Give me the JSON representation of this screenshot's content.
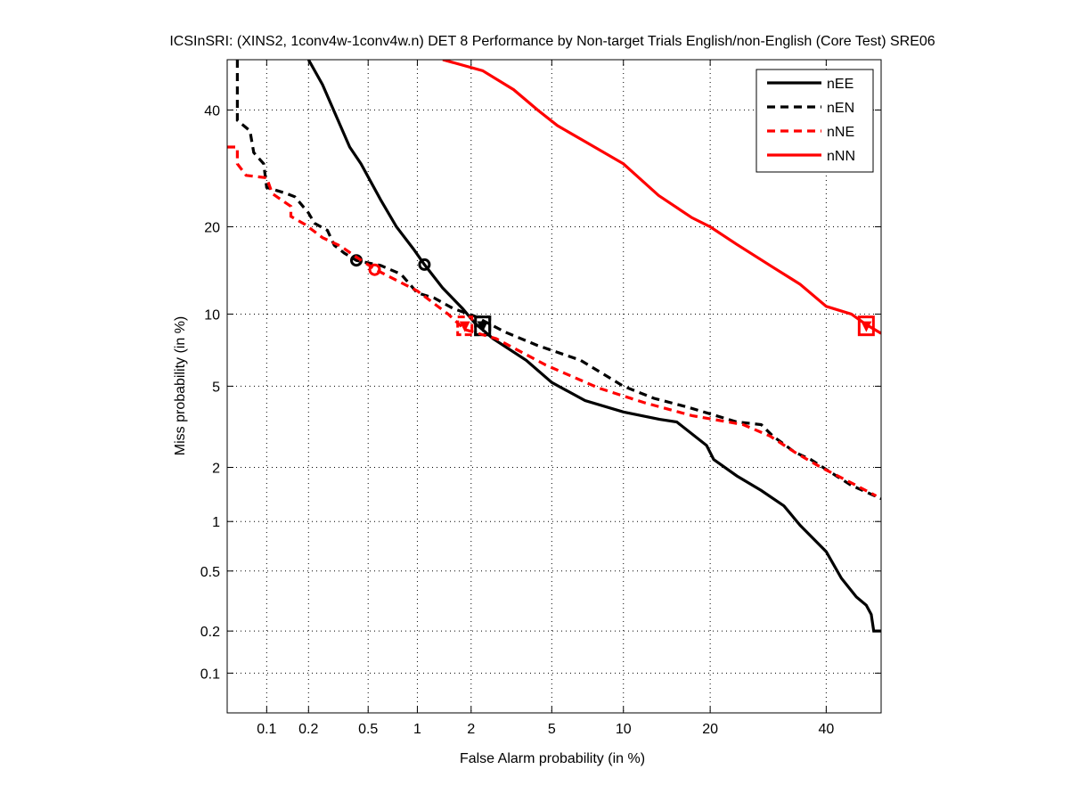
{
  "chart_data": {
    "type": "line",
    "title": "ICSInSRI: (XINS2, 1conv4w-1conv4w.n) DET 8 Performance by Non-target Trials English/non-English (Core Test) SRE06",
    "xlabel": "False Alarm probability (in %)",
    "ylabel": "Miss probability (in %)",
    "x_scale": "probit",
    "y_scale": "probit",
    "xlim": [
      0.05,
      51
    ],
    "ylim": [
      0.05,
      50
    ],
    "x_ticks": [
      0.1,
      0.2,
      0.5,
      1,
      2,
      5,
      10,
      20,
      40
    ],
    "x_tick_labels": [
      "0.1",
      "0.2",
      "0.5",
      "1",
      "2",
      "5",
      "10",
      "20",
      "40"
    ],
    "y_ticks": [
      0.1,
      0.2,
      0.5,
      1,
      2,
      5,
      10,
      20,
      40
    ],
    "y_tick_labels": [
      "0.1",
      "0.2",
      "0.5",
      "1",
      "2",
      "5",
      "10",
      "20",
      "40"
    ],
    "grid": true,
    "legend_position": "top-right",
    "series": [
      {
        "name": "nEE",
        "color": "#000000",
        "style": "solid",
        "x": [
          0.2,
          0.25,
          0.38,
          0.45,
          0.6,
          0.75,
          0.95,
          1.1,
          1.4,
          1.8,
          2.1,
          2.6,
          3.8,
          5,
          7,
          10,
          13.6,
          15.6,
          19.5,
          20.5,
          24,
          28,
          32,
          35,
          40,
          43,
          46,
          48,
          49,
          49.5,
          51
        ],
        "y": [
          50,
          45,
          33,
          30,
          24,
          20,
          17,
          15.1,
          12.5,
          10.5,
          9.2,
          8,
          6.5,
          5.2,
          4.3,
          3.8,
          3.5,
          3.4,
          2.6,
          2.2,
          1.8,
          1.5,
          1.23,
          0.95,
          0.66,
          0.45,
          0.34,
          0.3,
          0.26,
          0.2,
          0.2
        ],
        "marker_min": {
          "x": 1.1,
          "y": 15.1
        },
        "marker_act": {
          "x": 2.3,
          "y": 9.0
        }
      },
      {
        "name": "nEN",
        "color": "#000000",
        "style": "dashed",
        "x": [
          0.06,
          0.06,
          0.075,
          0.08,
          0.095,
          0.1,
          0.14,
          0.16,
          0.2,
          0.22,
          0.27,
          0.3,
          0.35,
          0.42,
          0.6,
          0.8,
          1,
          1.25,
          1.6,
          2.1,
          2.4,
          3,
          4.3,
          6.7,
          10,
          13,
          17,
          24,
          28,
          30,
          34,
          37,
          42,
          45,
          51
        ],
        "y": [
          50,
          38,
          36,
          32,
          30,
          26,
          25,
          24.5,
          22,
          20.5,
          19.5,
          17.5,
          16.5,
          15.6,
          15,
          14,
          12,
          11.5,
          10.5,
          9.8,
          9.3,
          8.5,
          7.5,
          6.5,
          5,
          4.4,
          4,
          3.4,
          3.3,
          2.9,
          2.4,
          2.2,
          1.8,
          1.6,
          1.35
        ],
        "marker_min": {
          "x": 0.42,
          "y": 15.6
        },
        "marker_act": {
          "x": 2.3,
          "y": 9.0
        }
      },
      {
        "name": "nNE",
        "color": "#ff0000",
        "style": "dashed",
        "x": [
          0.05,
          0.06,
          0.06,
          0.07,
          0.1,
          0.11,
          0.15,
          0.15,
          0.19,
          0.25,
          0.33,
          0.42,
          0.56,
          1,
          1.5,
          1.85,
          2.7,
          4.7,
          8,
          12,
          17.5,
          25,
          29.5,
          34,
          39,
          45,
          50
        ],
        "y": [
          33,
          33,
          30,
          28,
          27.6,
          25,
          23,
          21.5,
          20.3,
          18.5,
          17.4,
          16,
          14.5,
          12.2,
          10,
          8.7,
          8,
          6.2,
          4.9,
          4.2,
          3.65,
          3.3,
          2.9,
          2.4,
          2,
          1.65,
          1.4
        ],
        "marker_min": {
          "x": 0.55,
          "y": 14.5
        },
        "marker_act": {
          "x": 1.85,
          "y": 9.0
        }
      },
      {
        "name": "nNN",
        "color": "#ff0000",
        "style": "solid",
        "x": [
          1.4,
          2.3,
          3.3,
          4.3,
          5.3,
          7,
          10,
          13.5,
          17.5,
          20,
          24,
          30,
          35,
          40,
          45,
          48,
          51
        ],
        "y": [
          50,
          47.8,
          44,
          40,
          37,
          34,
          30,
          24.7,
          21.3,
          20,
          17.6,
          14.8,
          12.9,
          10.7,
          10,
          9.1,
          8.4
        ],
        "marker_min": {
          "x": 48,
          "y": 9.1
        },
        "marker_act": {
          "x": 48,
          "y": 9.0
        }
      }
    ]
  }
}
